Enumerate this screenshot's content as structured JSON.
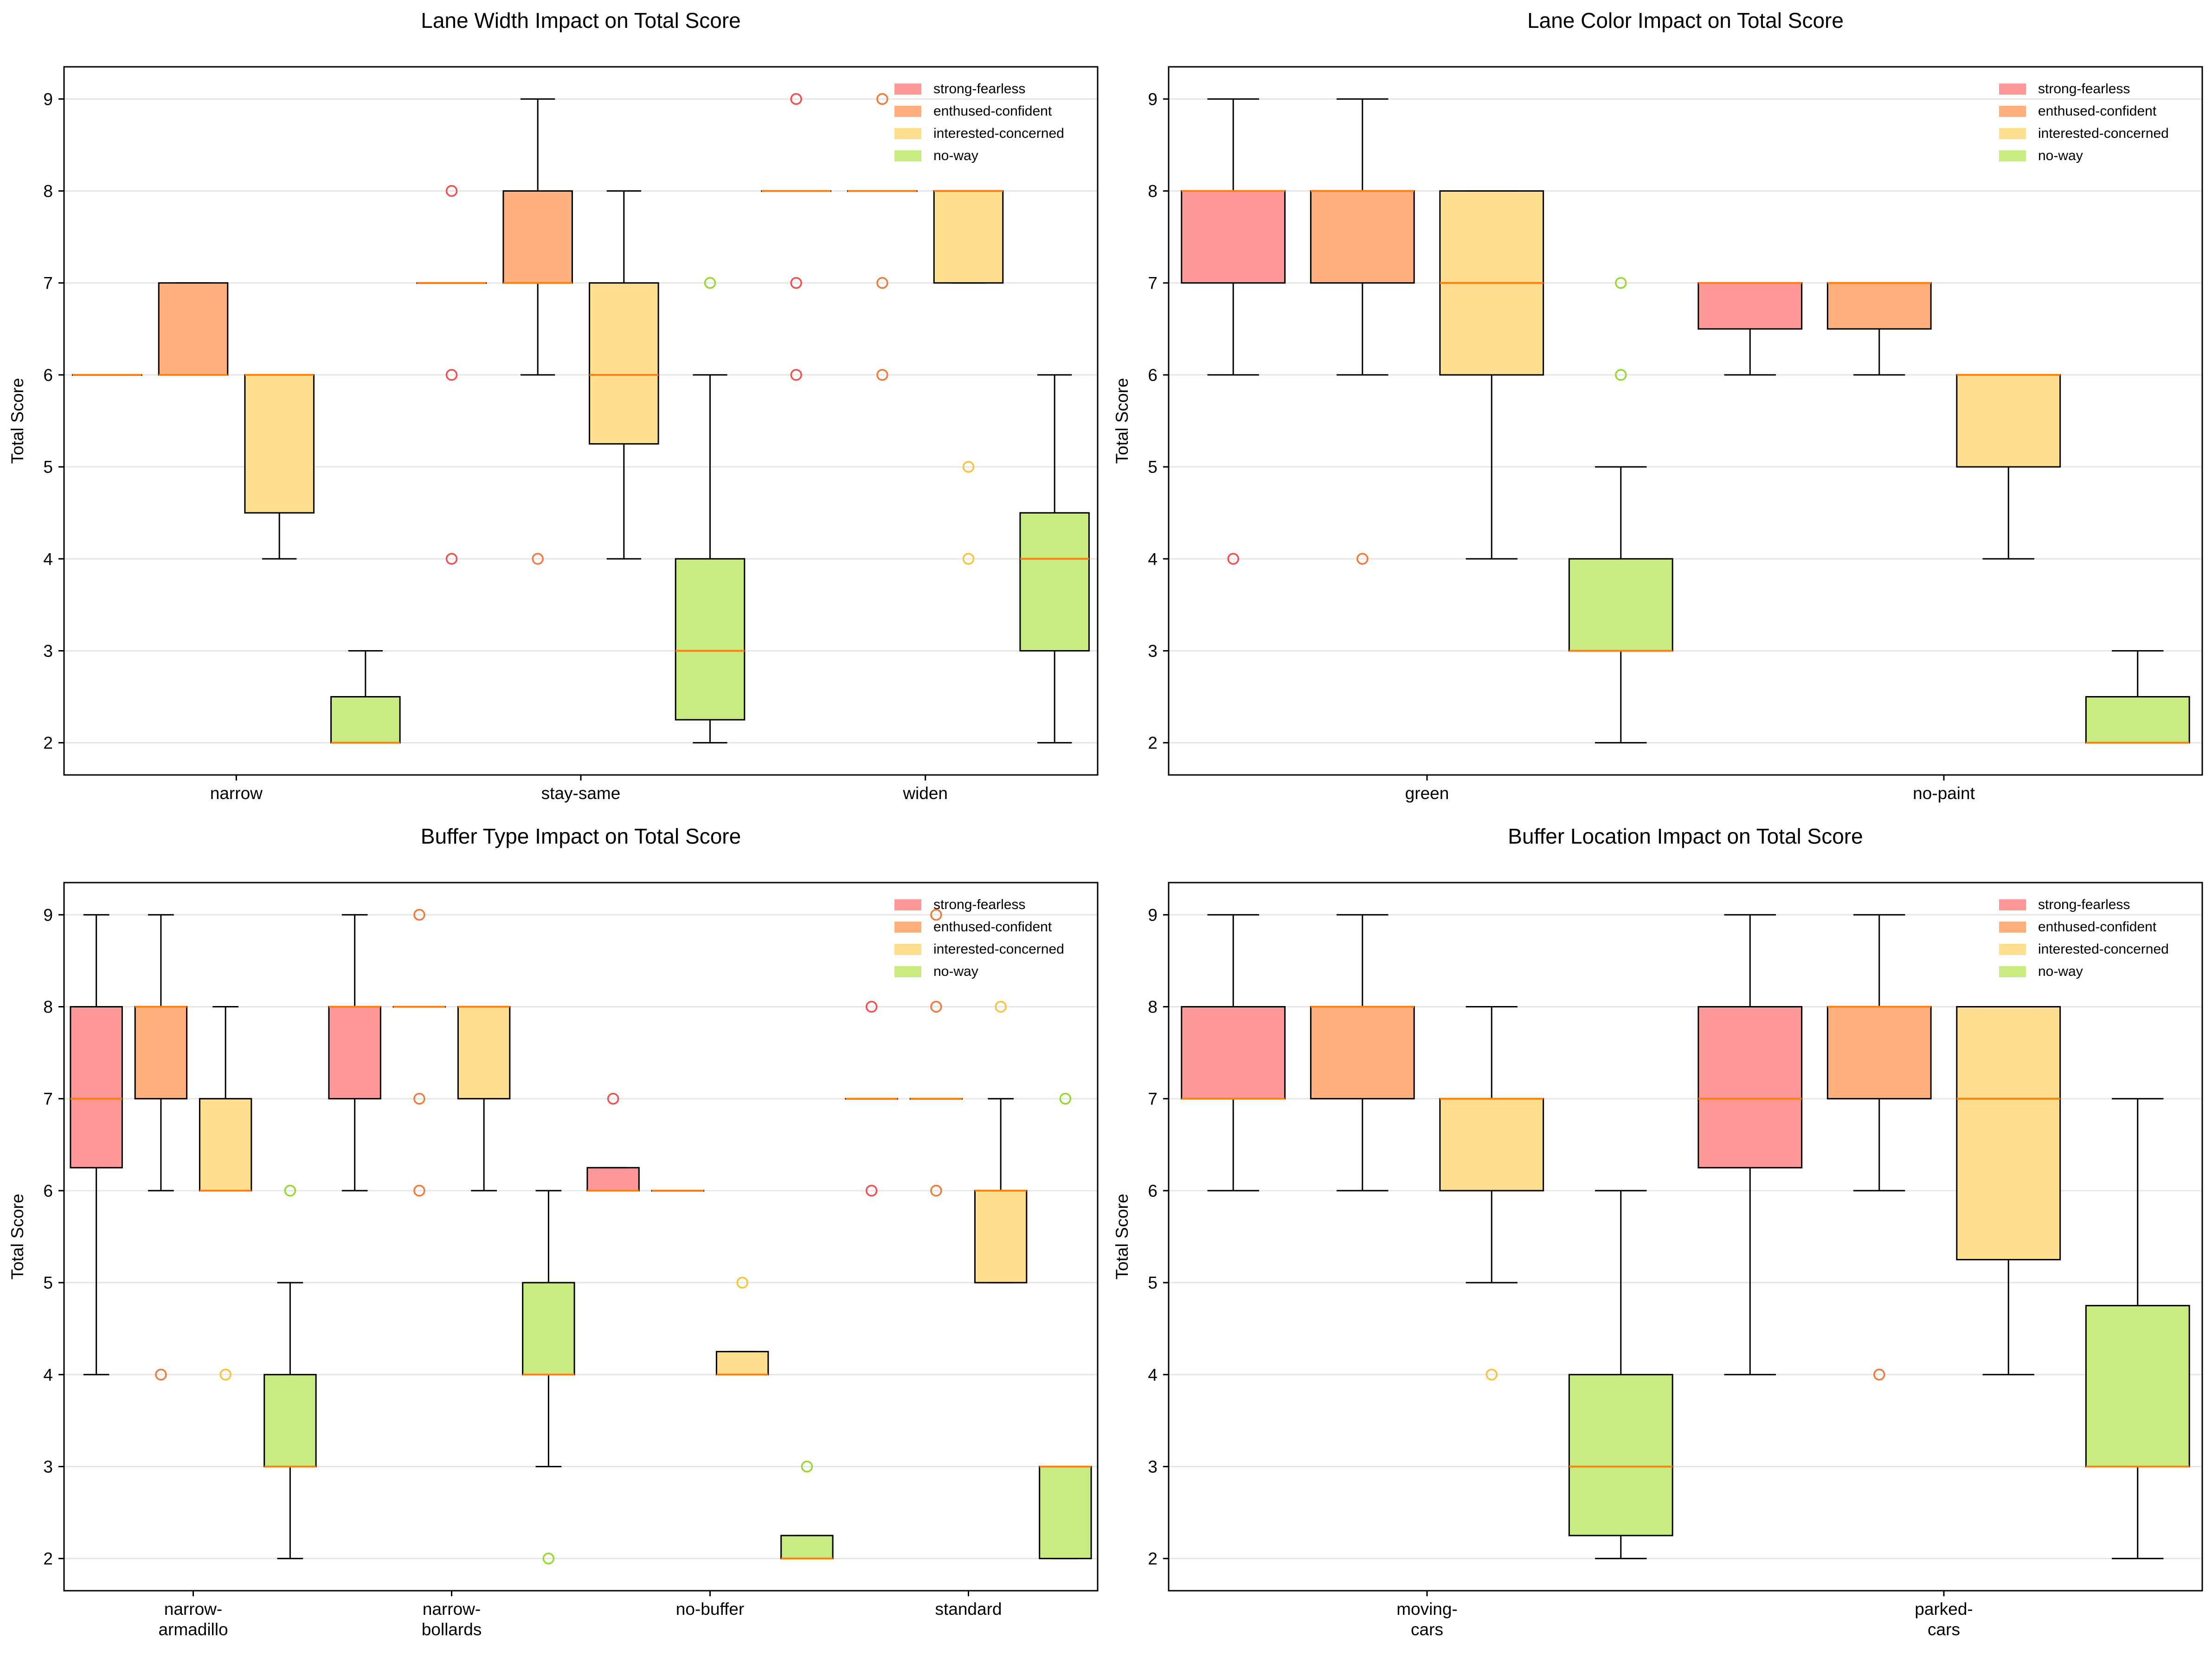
{
  "chart_data": [
    {
      "type": "box",
      "title": "Lane Width Impact on Total Score",
      "xlabel": "",
      "ylabel": "Total Score",
      "ylim": [
        1.65,
        9.35
      ],
      "yticks": [
        2,
        3,
        4,
        5,
        6,
        7,
        8,
        9
      ],
      "ytick_labels": [
        "2",
        "3",
        "4",
        "5",
        "6",
        "7",
        "8",
        "9"
      ],
      "grid": "horizontal",
      "legend_position": "top-right",
      "categories": [
        [
          "narrow"
        ],
        [
          "stay-same"
        ],
        [
          "widen"
        ]
      ],
      "series": [
        {
          "name": "strong-fearless",
          "color": "#ff9999",
          "boxes": [
            {
              "whislo": 6,
              "q1": 6,
              "med": 6,
              "q3": 6,
              "whishi": 6,
              "fliers": []
            },
            {
              "whislo": 7,
              "q1": 7,
              "med": 7,
              "q3": 7,
              "whishi": 7,
              "fliers": [
                8,
                6,
                4
              ]
            },
            {
              "whislo": 8,
              "q1": 8,
              "med": 8,
              "q3": 8,
              "whishi": 8,
              "fliers": [
                9,
                7,
                6
              ]
            }
          ]
        },
        {
          "name": "enthused-confident",
          "color": "#ffb07c",
          "boxes": [
            {
              "whislo": 6,
              "q1": 6,
              "med": 6,
              "q3": 7,
              "whishi": 7,
              "fliers": []
            },
            {
              "whislo": 6,
              "q1": 7,
              "med": 7,
              "q3": 8,
              "whishi": 9,
              "fliers": [
                4
              ]
            },
            {
              "whislo": 8,
              "q1": 8,
              "med": 8,
              "q3": 8,
              "whishi": 8,
              "fliers": [
                9,
                7,
                6
              ]
            }
          ]
        },
        {
          "name": "interested-concerned",
          "color": "#ffdf8f",
          "boxes": [
            {
              "whislo": 4,
              "q1": 4.5,
              "med": 6,
              "q3": 6,
              "whishi": 6,
              "fliers": []
            },
            {
              "whislo": 4,
              "q1": 5.25,
              "med": 6,
              "q3": 7,
              "whishi": 8,
              "fliers": []
            },
            {
              "whislo": 7,
              "q1": 7,
              "med": 8,
              "q3": 8,
              "whishi": 8,
              "fliers": [
                5,
                4
              ]
            }
          ]
        },
        {
          "name": "no-way",
          "color": "#c9ec82",
          "boxes": [
            {
              "whislo": 2,
              "q1": 2,
              "med": 2,
              "q3": 2.5,
              "whishi": 3,
              "fliers": []
            },
            {
              "whislo": 2,
              "q1": 2.25,
              "med": 3,
              "q3": 4,
              "whishi": 6,
              "fliers": [
                7
              ]
            },
            {
              "whislo": 2,
              "q1": 3,
              "med": 4,
              "q3": 4.5,
              "whishi": 6,
              "fliers": []
            }
          ]
        }
      ]
    },
    {
      "type": "box",
      "title": "Lane Color Impact on Total Score",
      "xlabel": "",
      "ylabel": "Total Score",
      "ylim": [
        1.65,
        9.35
      ],
      "yticks": [
        2,
        3,
        4,
        5,
        6,
        7,
        8,
        9
      ],
      "ytick_labels": [
        "2",
        "3",
        "4",
        "5",
        "6",
        "7",
        "8",
        "9"
      ],
      "grid": "horizontal",
      "legend_position": "top-right",
      "categories": [
        [
          "green"
        ],
        [
          "no-paint"
        ]
      ],
      "series": [
        {
          "name": "strong-fearless",
          "color": "#ff9999",
          "boxes": [
            {
              "whislo": 6,
              "q1": 7,
              "med": 8,
              "q3": 8,
              "whishi": 9,
              "fliers": [
                4
              ]
            },
            {
              "whislo": 6,
              "q1": 6.5,
              "med": 7,
              "q3": 7,
              "whishi": 7,
              "fliers": []
            }
          ]
        },
        {
          "name": "enthused-confident",
          "color": "#ffb07c",
          "boxes": [
            {
              "whislo": 6,
              "q1": 7,
              "med": 8,
              "q3": 8,
              "whishi": 9,
              "fliers": [
                4
              ]
            },
            {
              "whislo": 6,
              "q1": 6.5,
              "med": 7,
              "q3": 7,
              "whishi": 7,
              "fliers": []
            }
          ]
        },
        {
          "name": "interested-concerned",
          "color": "#ffdf8f",
          "boxes": [
            {
              "whislo": 4,
              "q1": 6,
              "med": 7,
              "q3": 8,
              "whishi": 8,
              "fliers": []
            },
            {
              "whislo": 4,
              "q1": 5,
              "med": 6,
              "q3": 6,
              "whishi": 6,
              "fliers": []
            }
          ]
        },
        {
          "name": "no-way",
          "color": "#c9ec82",
          "boxes": [
            {
              "whislo": 2,
              "q1": 3,
              "med": 3,
              "q3": 4,
              "whishi": 5,
              "fliers": [
                7,
                6
              ]
            },
            {
              "whislo": 2,
              "q1": 2,
              "med": 2,
              "q3": 2.5,
              "whishi": 3,
              "fliers": []
            }
          ]
        }
      ]
    },
    {
      "type": "box",
      "title": "Buffer Type Impact on Total Score",
      "xlabel": "",
      "ylabel": "Total Score",
      "ylim": [
        1.65,
        9.35
      ],
      "yticks": [
        2,
        3,
        4,
        5,
        6,
        7,
        8,
        9
      ],
      "ytick_labels": [
        "2",
        "3",
        "4",
        "5",
        "6",
        "7",
        "8",
        "9"
      ],
      "grid": "horizontal",
      "legend_position": "top-right",
      "categories": [
        [
          "narrow-",
          "armadillo"
        ],
        [
          "narrow-",
          "bollards"
        ],
        [
          "no-buffer"
        ],
        [
          "standard"
        ]
      ],
      "series": [
        {
          "name": "strong-fearless",
          "color": "#ff9999",
          "boxes": [
            {
              "whislo": 4,
              "q1": 6.25,
              "med": 7,
              "q3": 8,
              "whishi": 9,
              "fliers": []
            },
            {
              "whislo": 6,
              "q1": 7,
              "med": 8,
              "q3": 8,
              "whishi": 9,
              "fliers": []
            },
            {
              "whislo": 6,
              "q1": 6,
              "med": 6,
              "q3": 6.25,
              "whishi": 6.25,
              "fliers": [
                7
              ]
            },
            {
              "whislo": 7,
              "q1": 7,
              "med": 7,
              "q3": 7,
              "whishi": 7,
              "fliers": [
                8,
                6
              ]
            }
          ]
        },
        {
          "name": "enthused-confident",
          "color": "#ffb07c",
          "boxes": [
            {
              "whislo": 6,
              "q1": 7,
              "med": 8,
              "q3": 8,
              "whishi": 9,
              "fliers": [
                4
              ]
            },
            {
              "whislo": 8,
              "q1": 8,
              "med": 8,
              "q3": 8,
              "whishi": 8,
              "fliers": [
                9,
                7,
                6
              ]
            },
            {
              "whislo": 6,
              "q1": 6,
              "med": 6,
              "q3": 6,
              "whishi": 6,
              "fliers": []
            },
            {
              "whislo": 7,
              "q1": 7,
              "med": 7,
              "q3": 7,
              "whishi": 7,
              "fliers": [
                9,
                8,
                6
              ]
            }
          ]
        },
        {
          "name": "interested-concerned",
          "color": "#ffdf8f",
          "boxes": [
            {
              "whislo": 6,
              "q1": 6,
              "med": 6,
              "q3": 7,
              "whishi": 8,
              "fliers": [
                4
              ]
            },
            {
              "whislo": 6,
              "q1": 7,
              "med": 8,
              "q3": 8,
              "whishi": 8,
              "fliers": []
            },
            {
              "whislo": 4,
              "q1": 4,
              "med": 4,
              "q3": 4.25,
              "whishi": 4.25,
              "fliers": [
                5
              ]
            },
            {
              "whislo": 5,
              "q1": 5,
              "med": 6,
              "q3": 6,
              "whishi": 7,
              "fliers": [
                8
              ]
            }
          ]
        },
        {
          "name": "no-way",
          "color": "#c9ec82",
          "boxes": [
            {
              "whislo": 2,
              "q1": 3,
              "med": 3,
              "q3": 4,
              "whishi": 5,
              "fliers": [
                6
              ]
            },
            {
              "whislo": 3,
              "q1": 4,
              "med": 4,
              "q3": 5,
              "whishi": 6,
              "fliers": [
                2
              ]
            },
            {
              "whislo": 2,
              "q1": 2,
              "med": 2,
              "q3": 2.25,
              "whishi": 2.25,
              "fliers": [
                3
              ]
            },
            {
              "whislo": 2,
              "q1": 2,
              "med": 3,
              "q3": 3,
              "whishi": 3,
              "fliers": [
                7
              ]
            }
          ]
        }
      ]
    },
    {
      "type": "box",
      "title": "Buffer Location Impact on Total Score",
      "xlabel": "",
      "ylabel": "Total Score",
      "ylim": [
        1.65,
        9.35
      ],
      "yticks": [
        2,
        3,
        4,
        5,
        6,
        7,
        8,
        9
      ],
      "ytick_labels": [
        "2",
        "3",
        "4",
        "5",
        "6",
        "7",
        "8",
        "9"
      ],
      "grid": "horizontal",
      "legend_position": "top-right",
      "categories": [
        [
          "moving-",
          "cars"
        ],
        [
          "parked-",
          "cars"
        ]
      ],
      "series": [
        {
          "name": "strong-fearless",
          "color": "#ff9999",
          "boxes": [
            {
              "whislo": 6,
              "q1": 7,
              "med": 7,
              "q3": 8,
              "whishi": 9,
              "fliers": []
            },
            {
              "whislo": 4,
              "q1": 6.25,
              "med": 7,
              "q3": 8,
              "whishi": 9,
              "fliers": []
            }
          ]
        },
        {
          "name": "enthused-confident",
          "color": "#ffb07c",
          "boxes": [
            {
              "whislo": 6,
              "q1": 7,
              "med": 8,
              "q3": 8,
              "whishi": 9,
              "fliers": []
            },
            {
              "whislo": 6,
              "q1": 7,
              "med": 8,
              "q3": 8,
              "whishi": 9,
              "fliers": [
                4
              ]
            }
          ]
        },
        {
          "name": "interested-concerned",
          "color": "#ffdf8f",
          "boxes": [
            {
              "whislo": 5,
              "q1": 6,
              "med": 7,
              "q3": 7,
              "whishi": 8,
              "fliers": [
                4
              ]
            },
            {
              "whislo": 4,
              "q1": 5.25,
              "med": 7,
              "q3": 8,
              "whishi": 8,
              "fliers": []
            }
          ]
        },
        {
          "name": "no-way",
          "color": "#c9ec82",
          "boxes": [
            {
              "whislo": 2,
              "q1": 2.25,
              "med": 3,
              "q3": 4,
              "whishi": 6,
              "fliers": []
            },
            {
              "whislo": 2,
              "q1": 3,
              "med": 3,
              "q3": 4.75,
              "whishi": 7,
              "fliers": []
            }
          ]
        }
      ]
    }
  ],
  "style": {
    "median_color": "#ff7f0e",
    "axis_color": "#000000",
    "grid_color": "#e6e6e6",
    "flier_colors": [
      "#f05050",
      "#f07a3c",
      "#f5c43a",
      "#96d832"
    ]
  }
}
